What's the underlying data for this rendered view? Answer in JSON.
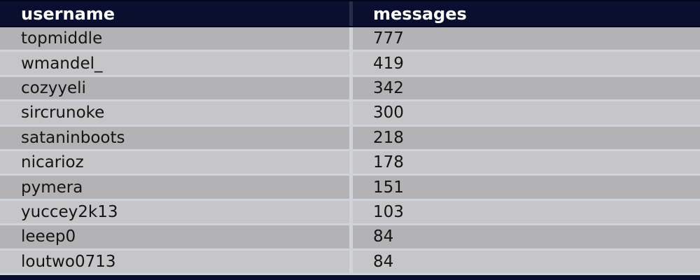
{
  "table": {
    "headers": [
      "username",
      "messages"
    ],
    "rows": [
      {
        "username": "topmiddle",
        "messages": "777"
      },
      {
        "username": "wmandel_",
        "messages": "419"
      },
      {
        "username": "cozyyeli",
        "messages": "342"
      },
      {
        "username": "sircrunoke",
        "messages": "300"
      },
      {
        "username": "sataninboots",
        "messages": "218"
      },
      {
        "username": "nicarioz",
        "messages": "178"
      },
      {
        "username": "pymera",
        "messages": "151"
      },
      {
        "username": "yuccey2k13",
        "messages": "103"
      },
      {
        "username": "leeep0",
        "messages": "84"
      },
      {
        "username": "loutwo0713",
        "messages": "84"
      }
    ]
  },
  "colors": {
    "header_bg": "#0a0e2f",
    "header_text": "#ffffff",
    "row_odd_bg": "#b3b3b5",
    "row_even_bg": "#c6c6c8",
    "divider": "#cfd3dc",
    "header_divider": "#282d46",
    "edge_line": "#04071a",
    "row_text": "#141414"
  }
}
